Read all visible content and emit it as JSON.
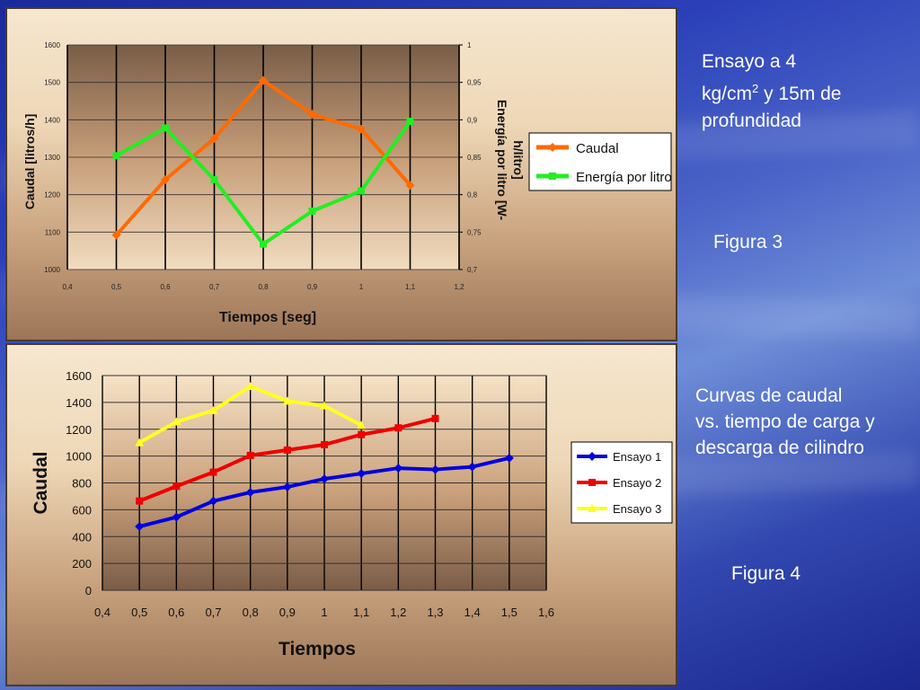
{
  "side": {
    "title1_line1": "Ensayo a    4",
    "title1_unit": "kg/cm",
    "title1_sup": "2",
    "title1_rest": " y 15m de",
    "title1_line3": "profundidad",
    "figure3": "Figura 3",
    "desc2_line1": "Curvas de caudal",
    "desc2_line2": "vs. tiempo de carga y",
    "desc2_line3": "descarga de cilindro",
    "figure4": "Figura 4"
  },
  "chart_data": [
    {
      "type": "line",
      "title": "",
      "xlabel": "Tiempos [seg]",
      "ylabel": "Caudal [litros/h]",
      "y2label_line1": "Energía por litro [W-",
      "y2label_line2": "h/litro]",
      "xlim": [
        0.4,
        1.2
      ],
      "ylim": [
        1000,
        1600
      ],
      "y2lim": [
        0.7,
        1
      ],
      "x_ticks": [
        "0,4",
        "0,5",
        "0,6",
        "0,7",
        "0,8",
        "0,9",
        "1",
        "1,1",
        "1,2"
      ],
      "y_ticks": [
        "1000",
        "1100",
        "1200",
        "1300",
        "1400",
        "1500",
        "1600"
      ],
      "y2_ticks": [
        "0,7",
        "0,75",
        "0,8",
        "0,85",
        "0,9",
        "0,95",
        "1"
      ],
      "legend_position": "right",
      "series": [
        {
          "name": "Caudal",
          "axis": "left",
          "color": "#ff6a00",
          "marker": "diamond",
          "x": [
            0.5,
            0.6,
            0.7,
            0.8,
            0.9,
            1.0,
            1.1
          ],
          "values": [
            1092,
            1240,
            1350,
            1505,
            1415,
            1375,
            1225
          ]
        },
        {
          "name": "Energía por litro",
          "axis": "right",
          "color": "#22ee22",
          "marker": "square",
          "x": [
            0.5,
            0.6,
            0.7,
            0.8,
            0.9,
            1.0,
            1.1
          ],
          "values": [
            0.852,
            0.889,
            0.82,
            0.734,
            0.778,
            0.805,
            0.898
          ]
        }
      ]
    },
    {
      "type": "line",
      "title": "",
      "xlabel": "Tiempos",
      "ylabel": "Caudal",
      "xlim": [
        0.4,
        1.6
      ],
      "ylim": [
        0,
        1600
      ],
      "x_ticks": [
        "0,4",
        "0,5",
        "0,6",
        "0,7",
        "0,8",
        "0,9",
        "1",
        "1,1",
        "1,2",
        "1,3",
        "1,4",
        "1,5",
        "1,6"
      ],
      "y_ticks": [
        "0",
        "200",
        "400",
        "600",
        "800",
        "1000",
        "1200",
        "1400",
        "1600"
      ],
      "legend_position": "right",
      "series": [
        {
          "name": "Ensayo 1",
          "color": "#0000dd",
          "marker": "diamond",
          "x": [
            0.5,
            0.6,
            0.7,
            0.8,
            0.9,
            1.0,
            1.1,
            1.2,
            1.3,
            1.4,
            1.5
          ],
          "values": [
            475,
            545,
            665,
            730,
            770,
            830,
            870,
            910,
            900,
            920,
            985
          ]
        },
        {
          "name": "Ensayo 2",
          "color": "#ee0000",
          "marker": "square",
          "x": [
            0.5,
            0.6,
            0.7,
            0.8,
            0.9,
            1.0,
            1.1,
            1.2,
            1.3
          ],
          "values": [
            665,
            775,
            880,
            1005,
            1045,
            1085,
            1160,
            1210,
            1280
          ]
        },
        {
          "name": "Ensayo 3",
          "color": "#ffff22",
          "marker": "triangle",
          "x": [
            0.5,
            0.6,
            0.7,
            0.8,
            0.9,
            1.0,
            1.1
          ],
          "values": [
            1100,
            1255,
            1340,
            1520,
            1410,
            1375,
            1230
          ]
        }
      ]
    }
  ]
}
